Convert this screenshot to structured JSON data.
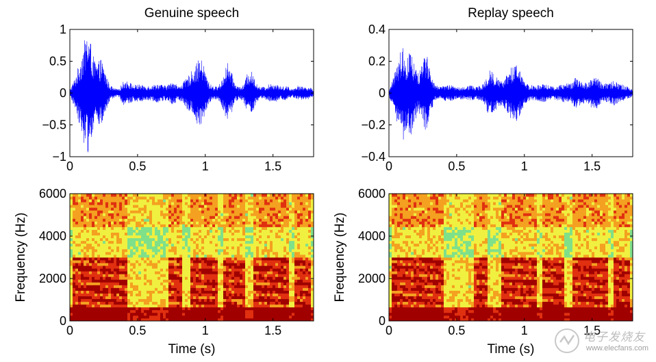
{
  "chart_data": [
    {
      "type": "line",
      "title": "Genuine speech",
      "xlabel": "",
      "ylabel": "",
      "xlim": [
        0,
        1.8
      ],
      "ylim": [
        -1,
        1
      ],
      "x_ticks": [
        "0",
        "0.5",
        "1",
        "1.5"
      ],
      "x_tick_values": [
        0,
        0.5,
        1,
        1.5
      ],
      "y_ticks": [
        "−1",
        "−0.5",
        "0",
        "0.5",
        "1"
      ],
      "y_tick_values": [
        -1,
        -0.5,
        0,
        0.5,
        1
      ],
      "series": [
        {
          "name": "waveform",
          "color": "#0000ff",
          "envelope_x": [
            0.0,
            0.04,
            0.08,
            0.11,
            0.13,
            0.15,
            0.17,
            0.2,
            0.23,
            0.26,
            0.29,
            0.32,
            0.36,
            0.4,
            0.44,
            0.47,
            0.5,
            0.55,
            0.6,
            0.65,
            0.7,
            0.74,
            0.77,
            0.8,
            0.85,
            0.9,
            0.93,
            0.96,
            0.98,
            1.0,
            1.03,
            1.07,
            1.1,
            1.13,
            1.16,
            1.19,
            1.22,
            1.25,
            1.28,
            1.31,
            1.34,
            1.37,
            1.4,
            1.44,
            1.48,
            1.52,
            1.56,
            1.6,
            1.64,
            1.68,
            1.72,
            1.76,
            1.8
          ],
          "envelope_y": [
            0.05,
            0.25,
            0.55,
            0.85,
            0.97,
            0.85,
            0.6,
            0.45,
            0.55,
            0.35,
            0.15,
            0.08,
            0.06,
            0.2,
            0.18,
            0.12,
            0.14,
            0.12,
            0.12,
            0.15,
            0.12,
            0.15,
            0.2,
            0.1,
            0.2,
            0.35,
            0.45,
            0.55,
            0.5,
            0.35,
            0.15,
            0.1,
            0.12,
            0.25,
            0.5,
            0.35,
            0.15,
            0.1,
            0.12,
            0.3,
            0.35,
            0.2,
            0.1,
            0.1,
            0.15,
            0.15,
            0.1,
            0.12,
            0.06,
            0.12,
            0.1,
            0.1,
            0.06
          ]
        }
      ]
    },
    {
      "type": "line",
      "title": "Replay speech",
      "xlabel": "",
      "ylabel": "",
      "xlim": [
        0,
        1.8
      ],
      "ylim": [
        -0.4,
        0.4
      ],
      "x_ticks": [
        "0",
        "0.5",
        "1",
        "1.5"
      ],
      "x_tick_values": [
        0,
        0.5,
        1,
        1.5
      ],
      "y_ticks": [
        "−0.4",
        "−0.2",
        "0",
        "0.2",
        "0.4"
      ],
      "y_tick_values": [
        -0.4,
        -0.2,
        0,
        0.2,
        0.4
      ],
      "series": [
        {
          "name": "waveform",
          "color": "#0000ff",
          "envelope_x": [
            0.0,
            0.04,
            0.08,
            0.11,
            0.13,
            0.16,
            0.19,
            0.22,
            0.25,
            0.28,
            0.31,
            0.34,
            0.38,
            0.42,
            0.46,
            0.5,
            0.55,
            0.6,
            0.65,
            0.7,
            0.74,
            0.78,
            0.82,
            0.86,
            0.9,
            0.94,
            0.98,
            1.02,
            1.06,
            1.1,
            1.14,
            1.18,
            1.22,
            1.26,
            1.3,
            1.34,
            1.38,
            1.42,
            1.46,
            1.5,
            1.54,
            1.58,
            1.62,
            1.66,
            1.7,
            1.74,
            1.78,
            1.8
          ],
          "envelope_y": [
            0.02,
            0.12,
            0.25,
            0.3,
            0.22,
            0.28,
            0.18,
            0.12,
            0.22,
            0.25,
            0.12,
            0.05,
            0.04,
            0.05,
            0.05,
            0.04,
            0.04,
            0.05,
            0.04,
            0.06,
            0.15,
            0.12,
            0.08,
            0.1,
            0.16,
            0.18,
            0.12,
            0.06,
            0.05,
            0.05,
            0.06,
            0.05,
            0.04,
            0.05,
            0.06,
            0.06,
            0.1,
            0.08,
            0.06,
            0.1,
            0.1,
            0.06,
            0.06,
            0.08,
            0.06,
            0.05,
            0.03,
            0.02
          ]
        }
      ]
    },
    {
      "type": "heatmap",
      "title": "",
      "xlabel": "Time (s)",
      "ylabel": "Frequency (Hz)",
      "xlim": [
        0,
        1.8
      ],
      "ylim": [
        0,
        6000
      ],
      "x_ticks": [
        "0",
        "0.5",
        "1",
        "1.5"
      ],
      "x_tick_values": [
        0,
        0.5,
        1,
        1.5
      ],
      "y_ticks": [
        "0",
        "2000",
        "4000",
        "6000"
      ],
      "y_tick_values": [
        0,
        2000,
        4000,
        6000
      ],
      "colormap": [
        "#1ec8d8",
        "#7fe08a",
        "#f0f040",
        "#f4a020",
        "#e03010",
        "#a00000"
      ],
      "voiced_segments_s": [
        [
          0.02,
          0.42
        ],
        [
          0.72,
          0.82
        ],
        [
          0.88,
          1.1
        ],
        [
          1.14,
          1.3
        ],
        [
          1.36,
          1.62
        ],
        [
          1.66,
          1.78
        ]
      ]
    },
    {
      "type": "heatmap",
      "title": "",
      "xlabel": "Time (s)",
      "ylabel": "Frequency (Hz)",
      "xlim": [
        0,
        1.8
      ],
      "ylim": [
        0,
        6000
      ],
      "x_ticks": [
        "0",
        "0.5",
        "1",
        "1.5"
      ],
      "x_tick_values": [
        0,
        0.5,
        1,
        1.5
      ],
      "y_ticks": [
        "0",
        "2000",
        "4000",
        "6000"
      ],
      "y_tick_values": [
        0,
        2000,
        4000,
        6000
      ],
      "colormap": [
        "#1ec8d8",
        "#7fe08a",
        "#f0f040",
        "#f4a020",
        "#e03010",
        "#a00000"
      ],
      "voiced_segments_s": [
        [
          0.02,
          0.4
        ],
        [
          0.62,
          0.72
        ],
        [
          0.82,
          1.1
        ],
        [
          1.14,
          1.3
        ],
        [
          1.36,
          1.62
        ],
        [
          1.66,
          1.78
        ]
      ]
    }
  ],
  "watermark": {
    "cn": "电子发烧友",
    "url": "www.elecfans.com"
  }
}
